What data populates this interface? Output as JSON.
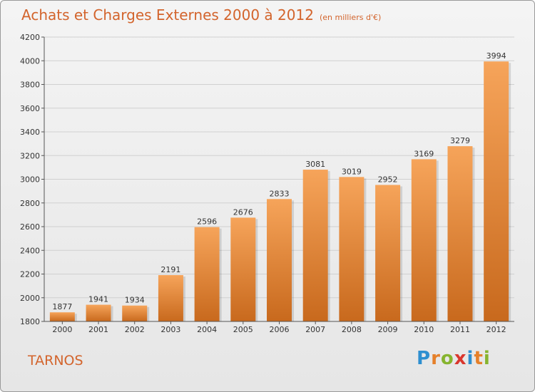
{
  "header": {
    "title": "Achats et Charges Externes 2000 à 2012",
    "subtitle": "(en milliers d'€)"
  },
  "footer": {
    "commune": "TARNOS",
    "logo_letters": [
      "P",
      "r",
      "o",
      "x",
      "i",
      "t",
      "i"
    ],
    "logo_colors": [
      "#2e8fd0",
      "#e5802a",
      "#86b42f",
      "#d9372e",
      "#2e8fd0",
      "#e5802a",
      "#86b42f"
    ]
  },
  "colors": {
    "title": "#d3642c",
    "bar_light": "#f6a45a",
    "bar_dark": "#c8691d",
    "grid": "#d0d0d0",
    "axis": "#555555"
  },
  "chart_data": {
    "type": "bar",
    "title": "Achats et Charges Externes 2000 à 2012",
    "categories": [
      "2000",
      "2001",
      "2002",
      "2003",
      "2004",
      "2005",
      "2006",
      "2007",
      "2008",
      "2009",
      "2010",
      "2011",
      "2012"
    ],
    "values": [
      1877,
      1941,
      1934,
      2191,
      2596,
      2676,
      2833,
      3081,
      3019,
      2952,
      3169,
      3279,
      3994
    ],
    "ylim": [
      1800,
      4200
    ],
    "yticks": [
      1800,
      2000,
      2200,
      2400,
      2600,
      2800,
      3000,
      3200,
      3400,
      3600,
      3800,
      4000,
      4200
    ],
    "grid": true,
    "xlabel": "",
    "ylabel": ""
  }
}
